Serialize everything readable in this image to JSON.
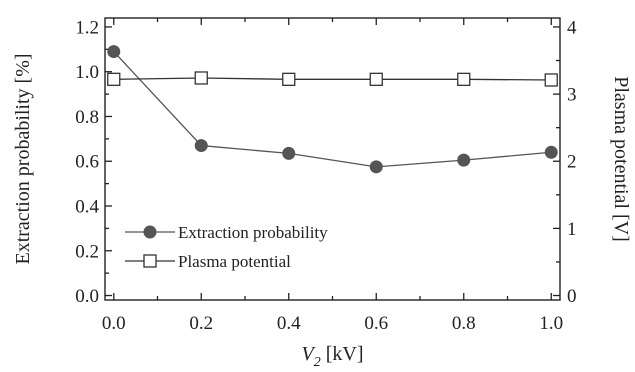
{
  "chart_data": {
    "type": "line",
    "x": [
      0.0,
      0.2,
      0.4,
      0.6,
      0.8,
      1.0
    ],
    "xlabel": {
      "var": "V",
      "sub": "2",
      "unit": " [kV]"
    },
    "ylabel_left": "Extraction probability [%]",
    "ylabel_right": "Plasma potential [V]",
    "xlim": [
      -0.02,
      1.02
    ],
    "ylim_left": [
      -0.02,
      1.24
    ],
    "ylim_right": [
      -0.0667,
      4.1333
    ],
    "xticks": [
      "0.0",
      "0.2",
      "0.4",
      "0.6",
      "0.8",
      "1.0"
    ],
    "yticks_left": [
      "0.0",
      "0.2",
      "0.4",
      "0.6",
      "0.8",
      "1.0",
      "1.2"
    ],
    "yticks_right": [
      "0",
      "1",
      "2",
      "3",
      "4"
    ],
    "grid": false,
    "legend_position": "lower-left",
    "series": [
      {
        "name": "Extraction probability",
        "axis": "left",
        "marker": "filled-circle",
        "color": "#555555",
        "values": [
          1.09,
          0.67,
          0.635,
          0.575,
          0.605,
          0.64
        ]
      },
      {
        "name": "Plasma potential",
        "axis": "right",
        "marker": "open-square",
        "color": "#333333",
        "values": [
          3.22,
          3.24,
          3.22,
          3.22,
          3.22,
          3.21
        ]
      }
    ]
  }
}
